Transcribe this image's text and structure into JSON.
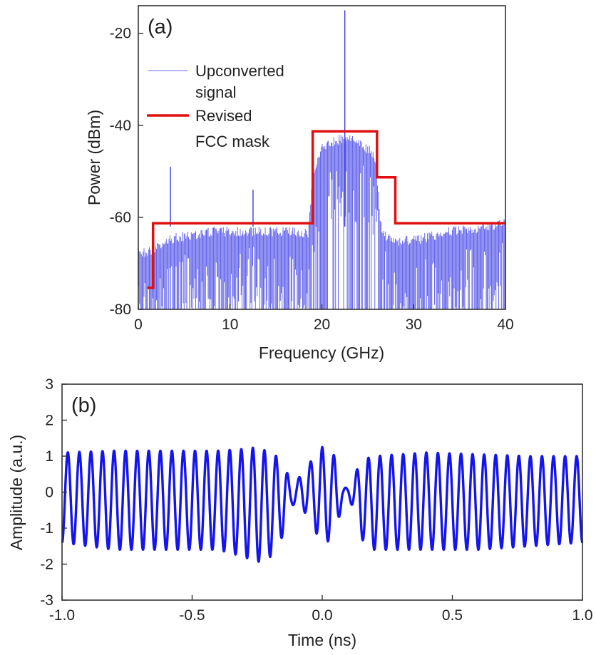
{
  "chart_data": [
    {
      "type": "line",
      "panel_label": "(a)",
      "xlabel": "Frequency (GHz)",
      "ylabel": "Power (dBm)",
      "xlim": [
        0,
        40
      ],
      "ylim": [
        -80,
        -14
      ],
      "xticks": [
        0,
        10,
        20,
        30,
        40
      ],
      "yticks": [
        -80,
        -60,
        -40,
        -20
      ],
      "grid": false,
      "legend_position": "top-left",
      "series": [
        {
          "name": "Upconverted signal",
          "name_lines": [
            "Upconverted",
            "signal"
          ],
          "color": "#3a3ae6",
          "style": "dense spectrum",
          "floor": -80,
          "envelope_x": [
            0,
            1.5,
            3,
            5,
            8,
            12,
            16,
            18.5,
            19,
            20,
            21,
            22,
            23,
            24,
            25,
            25.8,
            26.5,
            27.5,
            30,
            34,
            38,
            40
          ],
          "envelope_y": [
            -67,
            -66,
            -64,
            -63,
            -62,
            -62,
            -62,
            -62.5,
            -50,
            -44,
            -42.5,
            -42,
            -42,
            -42.5,
            -44,
            -46,
            -62,
            -64,
            -64,
            -62,
            -61,
            -60
          ],
          "peaks": [
            {
              "x": 3.5,
              "y": -49
            },
            {
              "x": 12.5,
              "y": -54
            },
            {
              "x": 22.5,
              "y": -15
            }
          ]
        },
        {
          "name": "Revised FCC mask",
          "name_lines": [
            "Revised",
            "FCC mask"
          ],
          "color": "#e01010",
          "x": [
            0.96,
            1.61,
            1.61,
            3.1,
            10.6,
            19.0,
            19.0,
            26.0,
            26.0,
            28.0,
            28.0,
            40.0
          ],
          "y": [
            -75.3,
            -75.3,
            -61.3,
            -61.3,
            -61.3,
            -61.3,
            -41.3,
            -41.3,
            -51.3,
            -51.3,
            -61.3,
            -61.3
          ]
        }
      ]
    },
    {
      "type": "line",
      "panel_label": "(b)",
      "xlabel": "Time (ns)",
      "ylabel": "Amplitude (a.u.)",
      "xlim": [
        -1.0,
        1.0
      ],
      "ylim": [
        -3,
        3
      ],
      "xticks": [
        -1.0,
        -0.5,
        0.0,
        0.5,
        1.0
      ],
      "xtick_labels": [
        "-1.0",
        "-0.5",
        "0.0",
        "0.5",
        "1.0"
      ],
      "yticks": [
        -3,
        -2,
        -1,
        0,
        1,
        2,
        3
      ],
      "grid": false,
      "series": [
        {
          "name": "",
          "color": "#1414f0",
          "carrier_frequency_ghz": 22.5,
          "t": [
            -1.0,
            -0.8,
            -0.6,
            -0.4,
            -0.3,
            -0.25,
            -0.2,
            -0.15,
            -0.12,
            -0.1,
            -0.05,
            0.0,
            0.05,
            0.08,
            0.1,
            0.12,
            0.15,
            0.2,
            0.4,
            0.6,
            0.8,
            1.0
          ],
          "max": [
            1.1,
            1.15,
            1.15,
            1.15,
            1.2,
            1.25,
            1.1,
            0.9,
            0.2,
            0.3,
            0.8,
            1.25,
            1.0,
            0.1,
            0.15,
            0.4,
            0.9,
            1.0,
            1.1,
            1.05,
            1.0,
            1.0
          ],
          "min": [
            -1.4,
            -1.6,
            -1.6,
            -1.6,
            -1.8,
            -1.95,
            -1.8,
            -1.2,
            -0.4,
            -0.3,
            -0.7,
            -1.5,
            -1.2,
            -0.2,
            -0.1,
            -0.5,
            -1.3,
            -1.6,
            -1.6,
            -1.6,
            -1.5,
            -1.4
          ]
        }
      ]
    }
  ]
}
